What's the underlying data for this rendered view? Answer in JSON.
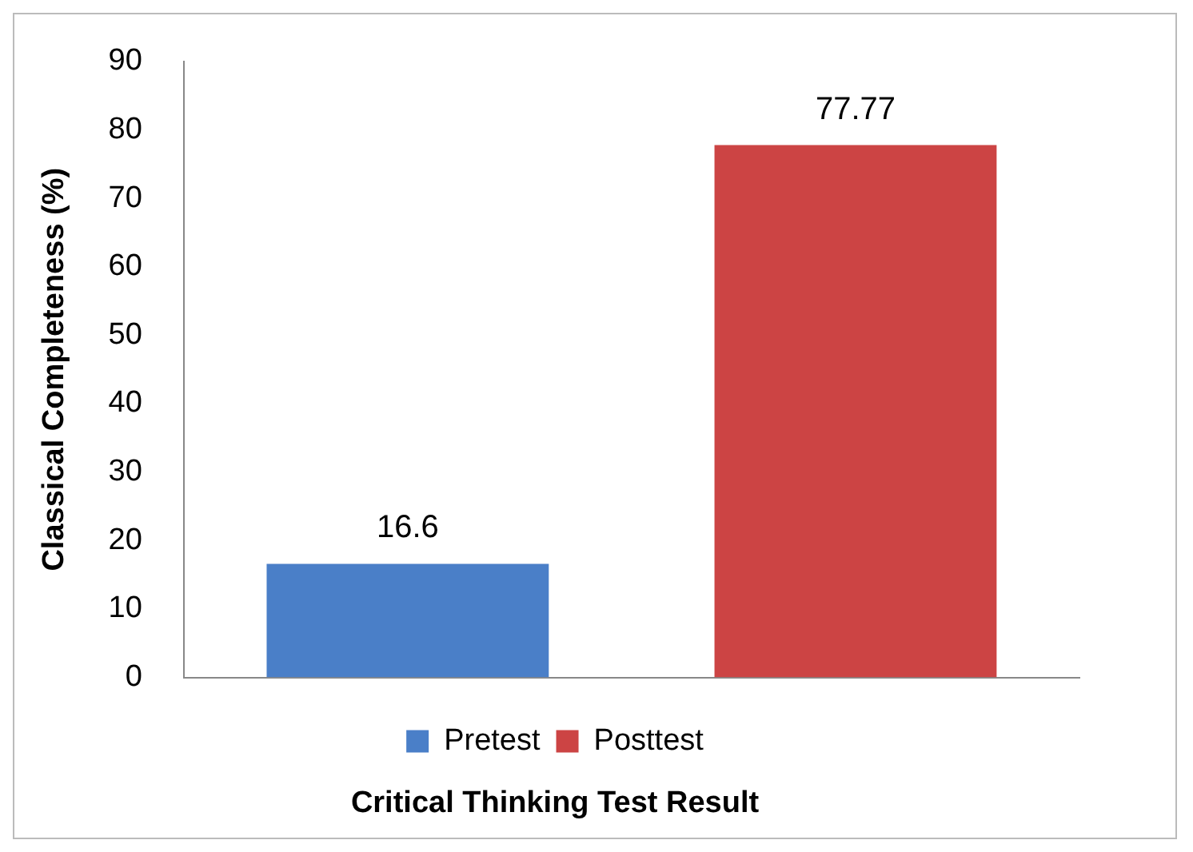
{
  "chart_data": {
    "type": "bar",
    "xlabel": "Critical Thinking Test Result",
    "ylabel": "Classical Completeness (%)",
    "categories": [
      null
    ],
    "series": [
      {
        "name": "Pretest",
        "color": "#4a7fc8",
        "values": [
          16.6
        ]
      },
      {
        "name": "Posttest",
        "color": "#cc4444",
        "values": [
          77.77
        ]
      }
    ],
    "ylim": [
      0,
      90
    ],
    "yticks": [
      0,
      10,
      20,
      30,
      40,
      50,
      60,
      70,
      80,
      90
    ],
    "grid": false,
    "legend": "bottom",
    "data_labels": true
  }
}
